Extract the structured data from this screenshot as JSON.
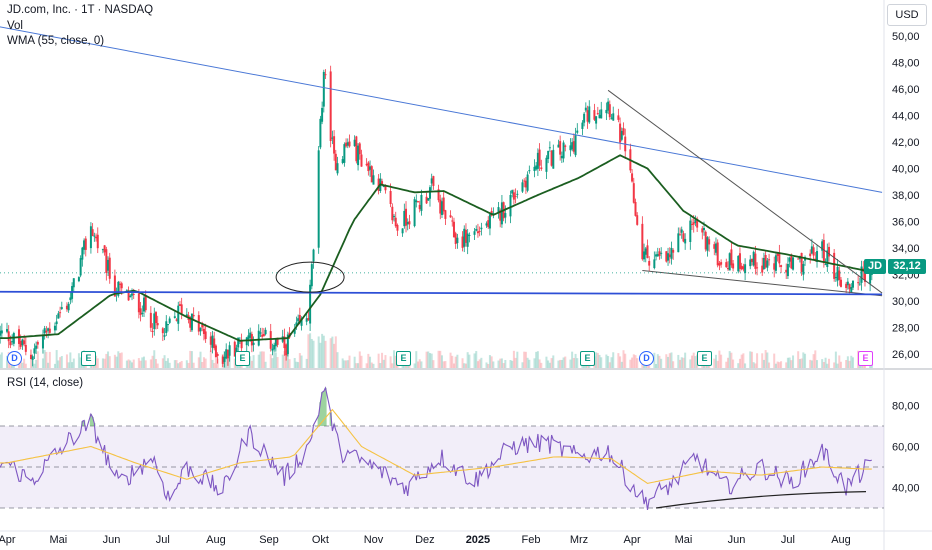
{
  "header": {
    "title": "JD.com, Inc. · 1T · NASDAQ",
    "vol_label": "Vol",
    "wma_label": "WMA (55, close, 0)",
    "rsi_label": "RSI (14, close)",
    "currency": "USD"
  },
  "badges": {
    "ticker": "JD",
    "last_price": "32,12",
    "ticker_color": "#089981",
    "price_color": "#089981"
  },
  "events": [
    {
      "type": "D",
      "label": "D"
    },
    {
      "type": "E",
      "label": "E"
    },
    {
      "type": "E",
      "label": "E"
    },
    {
      "type": "E",
      "label": "E"
    },
    {
      "type": "E",
      "label": "E"
    },
    {
      "type": "D",
      "label": "D"
    },
    {
      "type": "E",
      "label": "E"
    },
    {
      "type": "E2",
      "label": "E"
    }
  ],
  "chart_data": [
    {
      "type": "candlestick",
      "title": "JD.com, Inc. · 1T · NASDAQ",
      "x_tick_labels": [
        "Apr",
        "Mai",
        "Jun",
        "Jul",
        "Aug",
        "Sep",
        "Okt",
        "Nov",
        "Dez",
        "2025",
        "Feb",
        "Mrz",
        "Apr",
        "Mai",
        "Jun",
        "Jul",
        "Aug"
      ],
      "y_tick_labels": [
        "26,00",
        "28,00",
        "30,00",
        "32,00",
        "34,00",
        "36,00",
        "38,00",
        "40,00",
        "42,00",
        "44,00",
        "46,00",
        "48,00",
        "50,00"
      ],
      "ylim": [
        24.6,
        50.2
      ],
      "last_price": 32.12,
      "ohlc_anchors": [
        {
          "date": "2024-04-01",
          "close": 27.5
        },
        {
          "date": "2024-04-15",
          "close": 26.0
        },
        {
          "date": "2024-05-08",
          "close": 30.2
        },
        {
          "date": "2024-05-20",
          "close": 35.6
        },
        {
          "date": "2024-06-03",
          "close": 31.0
        },
        {
          "date": "2024-06-20",
          "close": 29.5
        },
        {
          "date": "2024-07-01",
          "close": 27.3
        },
        {
          "date": "2024-07-12",
          "close": 29.5
        },
        {
          "date": "2024-08-05",
          "close": 25.7
        },
        {
          "date": "2024-08-20",
          "close": 27.5
        },
        {
          "date": "2024-09-10",
          "close": 26.5
        },
        {
          "date": "2024-09-24",
          "close": 29.0
        },
        {
          "date": "2024-09-27",
          "close": 34.0
        },
        {
          "date": "2024-10-03",
          "close": 47.5
        },
        {
          "date": "2024-10-09",
          "close": 40.5
        },
        {
          "date": "2024-10-18",
          "close": 42.0
        },
        {
          "date": "2024-11-04",
          "close": 39.0
        },
        {
          "date": "2024-11-15",
          "close": 35.5
        },
        {
          "date": "2024-12-05",
          "close": 38.5
        },
        {
          "date": "2024-12-20",
          "close": 34.5
        },
        {
          "date": "2025-01-10",
          "close": 36.0
        },
        {
          "date": "2025-02-05",
          "close": 40.5
        },
        {
          "date": "2025-02-24",
          "close": 41.5
        },
        {
          "date": "2025-03-05",
          "close": 44.0
        },
        {
          "date": "2025-03-18",
          "close": 45.0
        },
        {
          "date": "2025-03-28",
          "close": 41.5
        },
        {
          "date": "2025-04-07",
          "close": 33.5
        },
        {
          "date": "2025-04-21",
          "close": 33.0
        },
        {
          "date": "2025-05-07",
          "close": 36.0
        },
        {
          "date": "2025-05-23",
          "close": 33.0
        },
        {
          "date": "2025-06-13",
          "close": 33.0
        },
        {
          "date": "2025-07-03",
          "close": 32.5
        },
        {
          "date": "2025-07-21",
          "close": 33.8
        },
        {
          "date": "2025-08-04",
          "close": 31.0
        },
        {
          "date": "2025-08-15",
          "close": 32.1
        }
      ],
      "wma_anchors": [
        {
          "date": "2024-04-01",
          "value": 27.2
        },
        {
          "date": "2024-05-01",
          "value": 27.5
        },
        {
          "date": "2024-06-01",
          "value": 30.5
        },
        {
          "date": "2024-06-15",
          "value": 30.8
        },
        {
          "date": "2024-07-15",
          "value": 28.8
        },
        {
          "date": "2024-08-15",
          "value": 27.0
        },
        {
          "date": "2024-09-12",
          "value": 27.2
        },
        {
          "date": "2024-10-01",
          "value": 30.5
        },
        {
          "date": "2024-10-20",
          "value": 36.0
        },
        {
          "date": "2024-11-05",
          "value": 38.8
        },
        {
          "date": "2024-11-25",
          "value": 38.2
        },
        {
          "date": "2024-12-12",
          "value": 38.3
        },
        {
          "date": "2025-01-10",
          "value": 36.5
        },
        {
          "date": "2025-02-05",
          "value": 38.0
        },
        {
          "date": "2025-03-01",
          "value": 39.3
        },
        {
          "date": "2025-03-25",
          "value": 41.0
        },
        {
          "date": "2025-04-10",
          "value": 40.0
        },
        {
          "date": "2025-05-01",
          "value": 36.8
        },
        {
          "date": "2025-06-01",
          "value": 34.2
        },
        {
          "date": "2025-07-01",
          "value": 33.5
        },
        {
          "date": "2025-08-15",
          "value": 32.3
        }
      ],
      "trendlines": [
        {
          "from": {
            "date": "2024-03-15",
            "price": 51.0
          },
          "to": {
            "date": "2025-08-25",
            "price": 38.2
          },
          "color": "#4a78d6"
        },
        {
          "from": {
            "date": "2025-03-18",
            "price": 45.9
          },
          "to": {
            "date": "2025-08-25",
            "price": 30.6
          },
          "color": "#555555"
        },
        {
          "from": {
            "date": "2025-04-07",
            "price": 32.3
          },
          "to": {
            "date": "2025-08-25",
            "price": 30.4
          },
          "color": "#555555"
        },
        {
          "from": {
            "date": "2024-03-25",
            "price": 30.7
          },
          "to": {
            "date": "2025-08-25",
            "price": 30.5
          },
          "color": "#2d4fd6"
        }
      ],
      "annotation": {
        "type": "ellipse",
        "center": {
          "date": "2024-09-25",
          "price": 31.8
        }
      }
    },
    {
      "type": "line",
      "title": "RSI (14, close)",
      "y_tick_labels": [
        "40,00",
        "60,00",
        "80,00"
      ],
      "ylim": [
        25,
        92
      ],
      "bands": {
        "upper": 70,
        "middle": 50,
        "lower": 30
      },
      "rsi_anchors": [
        {
          "date": "2024-04-01",
          "value": 52
        },
        {
          "date": "2024-04-15",
          "value": 43
        },
        {
          "date": "2024-05-06",
          "value": 62
        },
        {
          "date": "2024-05-20",
          "value": 72
        },
        {
          "date": "2024-06-05",
          "value": 42
        },
        {
          "date": "2024-06-25",
          "value": 55
        },
        {
          "date": "2024-07-05",
          "value": 34
        },
        {
          "date": "2024-07-15",
          "value": 50
        },
        {
          "date": "2024-08-05",
          "value": 38
        },
        {
          "date": "2024-08-20",
          "value": 67
        },
        {
          "date": "2024-09-10",
          "value": 45
        },
        {
          "date": "2024-09-24",
          "value": 60
        },
        {
          "date": "2024-10-03",
          "value": 88
        },
        {
          "date": "2024-10-12",
          "value": 58
        },
        {
          "date": "2024-11-01",
          "value": 50
        },
        {
          "date": "2024-11-20",
          "value": 40
        },
        {
          "date": "2024-12-10",
          "value": 55
        },
        {
          "date": "2024-12-30",
          "value": 43
        },
        {
          "date": "2025-01-20",
          "value": 60
        },
        {
          "date": "2025-02-10",
          "value": 62
        },
        {
          "date": "2025-02-28",
          "value": 55
        },
        {
          "date": "2025-03-18",
          "value": 58
        },
        {
          "date": "2025-04-08",
          "value": 33
        },
        {
          "date": "2025-04-25",
          "value": 42
        },
        {
          "date": "2025-05-08",
          "value": 55
        },
        {
          "date": "2025-05-25",
          "value": 40
        },
        {
          "date": "2025-06-15",
          "value": 50
        },
        {
          "date": "2025-07-03",
          "value": 42
        },
        {
          "date": "2025-07-21",
          "value": 58
        },
        {
          "date": "2025-08-04",
          "value": 40
        },
        {
          "date": "2025-08-15",
          "value": 49
        }
      ],
      "rsi_ma_anchors": [
        {
          "date": "2024-04-01",
          "value": 52
        },
        {
          "date": "2024-05-20",
          "value": 60
        },
        {
          "date": "2024-06-15",
          "value": 52
        },
        {
          "date": "2024-07-15",
          "value": 44
        },
        {
          "date": "2024-08-15",
          "value": 52
        },
        {
          "date": "2024-09-15",
          "value": 55
        },
        {
          "date": "2024-10-08",
          "value": 78
        },
        {
          "date": "2024-10-25",
          "value": 60
        },
        {
          "date": "2024-11-25",
          "value": 46
        },
        {
          "date": "2025-01-10",
          "value": 50
        },
        {
          "date": "2025-02-15",
          "value": 55
        },
        {
          "date": "2025-03-20",
          "value": 54
        },
        {
          "date": "2025-04-10",
          "value": 42
        },
        {
          "date": "2025-05-15",
          "value": 48
        },
        {
          "date": "2025-06-15",
          "value": 46
        },
        {
          "date": "2025-07-21",
          "value": 50
        },
        {
          "date": "2025-08-15",
          "value": 49
        }
      ],
      "support_line": {
        "from": {
          "date": "2025-04-15",
          "value": 30
        },
        "to": {
          "date": "2025-08-25",
          "value": 38
        }
      }
    }
  ]
}
